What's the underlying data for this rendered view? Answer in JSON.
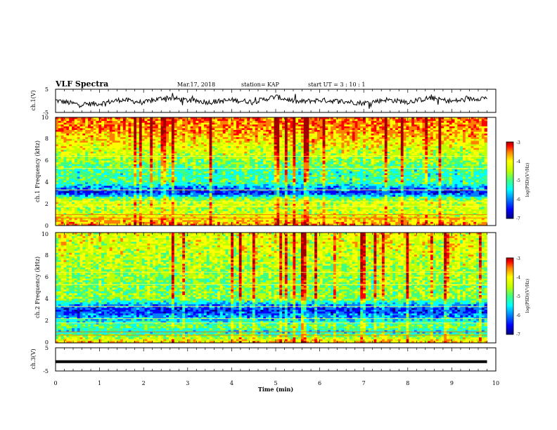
{
  "header": {
    "title": "VLF Spectra",
    "date": "Mar.17, 2018",
    "station": "station= KAP",
    "start": "start  UT =   3  : 10 : 1"
  },
  "colors": {
    "scale": [
      "#000080",
      "#0000ff",
      "#0080ff",
      "#00ffff",
      "#40ff80",
      "#c0ff00",
      "#ffff00",
      "#ff8000",
      "#ff0000",
      "#a00000"
    ],
    "trace": "#000000"
  },
  "chart_data": [
    {
      "type": "line",
      "name": "ch1-waveform",
      "ylabel": "ch.1(V)",
      "ylim": [
        -5,
        5
      ],
      "yticks": [
        "5",
        "-5"
      ],
      "x": [
        0,
        0.5,
        1,
        1.5,
        2,
        2.5,
        3,
        3.5,
        4,
        4.5,
        5,
        5.5,
        6,
        6.5,
        7,
        7.5,
        8,
        8.5,
        9,
        9.5,
        9.8
      ],
      "values": [
        0.2,
        -1.5,
        -1.2,
        0.5,
        -0.8,
        1.5,
        0.2,
        -0.6,
        0.3,
        -0.4,
        1.8,
        -0.5,
        0.3,
        -0.2,
        -1.0,
        0.5,
        -0.5,
        1.2,
        -0.2,
        0.9,
        1.4
      ]
    },
    {
      "type": "heatmap",
      "name": "ch1-spectrogram",
      "ylabel": "ch.1 Frequency (kHz)",
      "ylim": [
        0,
        10
      ],
      "yticks": [
        "0",
        "2",
        "4",
        "6",
        "8",
        "10"
      ],
      "colorbar": {
        "label": "log(PSD)(V²/Hz)",
        "range": [
          -7,
          -3
        ],
        "ticks": [
          "-3",
          "-4",
          "-5",
          "-6",
          "-7"
        ]
      },
      "band_profile": {
        "freq_khz": [
          0,
          0.5,
          1,
          1.5,
          2,
          2.5,
          3,
          3.5,
          4,
          5,
          6,
          7,
          8,
          9,
          10
        ],
        "log_psd": [
          -4.0,
          -4.3,
          -4.6,
          -4.8,
          -4.6,
          -5.0,
          -6.4,
          -6.0,
          -5.2,
          -5.3,
          -4.9,
          -4.6,
          -4.3,
          -4.0,
          -3.9
        ]
      }
    },
    {
      "type": "heatmap",
      "name": "ch2-spectrogram",
      "ylabel": "ch.2 Frequency (kHz)",
      "ylim": [
        0,
        10
      ],
      "yticks": [
        "0",
        "2",
        "4",
        "6",
        "8",
        "10"
      ],
      "colorbar": {
        "label": "log(PSD)(V²/Hz)",
        "range": [
          -7,
          -3
        ],
        "ticks": [
          "-3",
          "-4",
          "-5",
          "-6",
          "-7"
        ]
      },
      "band_profile": {
        "freq_khz": [
          0,
          0.5,
          1,
          1.5,
          2,
          2.5,
          3,
          3.5,
          4,
          5,
          6,
          7,
          8,
          9,
          10
        ],
        "log_psd": [
          -4.2,
          -4.8,
          -5.6,
          -5.0,
          -5.6,
          -6.0,
          -6.4,
          -5.8,
          -4.9,
          -5.0,
          -4.9,
          -4.8,
          -4.7,
          -4.6,
          -4.5
        ]
      }
    },
    {
      "type": "line",
      "name": "ch3-waveform",
      "ylabel": "ch.3(V)",
      "ylim": [
        -5,
        5
      ],
      "yticks": [
        "5",
        "-5"
      ],
      "x": [
        0,
        9.8
      ],
      "values": [
        -1,
        -1
      ]
    }
  ],
  "xaxis": {
    "label": "Time (min)",
    "ticks": [
      "0",
      "1",
      "2",
      "3",
      "4",
      "5",
      "6",
      "7",
      "8",
      "9",
      "10"
    ],
    "xlim": [
      0,
      10
    ]
  }
}
